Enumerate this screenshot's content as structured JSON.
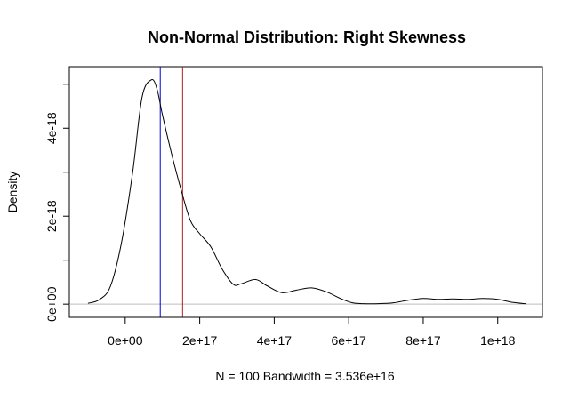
{
  "chart_data": {
    "type": "line",
    "title": "Non-Normal Distribution: Right Skewness",
    "xlabel": "N = 100   Bandwidth = 3.536e+16",
    "ylabel": "Density",
    "xlim": [
      -1.5e+17,
      1.12e+18
    ],
    "ylim": [
      -3e-19,
      5.4e-18
    ],
    "x_ticks": [
      {
        "value": 0,
        "label": "0e+00"
      },
      {
        "value": 2e+17,
        "label": "2e+17"
      },
      {
        "value": 4e+17,
        "label": "4e+17"
      },
      {
        "value": 6e+17,
        "label": "6e+17"
      },
      {
        "value": 8e+17,
        "label": "8e+17"
      },
      {
        "value": 1e+18,
        "label": "1e+18"
      }
    ],
    "y_ticks": [
      {
        "value": 0,
        "label": "0e+00"
      },
      {
        "value": 1e-18,
        "label": ""
      },
      {
        "value": 2e-18,
        "label": "2e-18"
      },
      {
        "value": 3e-18,
        "label": ""
      },
      {
        "value": 4e-18,
        "label": "4e-18"
      },
      {
        "value": 5e-18,
        "label": ""
      }
    ],
    "baseline": {
      "y": 0,
      "color": "#bebebe"
    },
    "vlines": [
      {
        "x": 9.4e+16,
        "color": "#0000cd"
      },
      {
        "x": 1.54e+17,
        "color": "#b22222"
      }
    ],
    "series": [
      {
        "color": "#000000",
        "x": [
          -1e+17,
          -7e+16,
          -4e+16,
          -1e+16,
          2e+16,
          4.5e+16,
          7e+16,
          8.5e+16,
          1e+17,
          1.25e+17,
          1.5e+17,
          1.75e+17,
          2e+17,
          2.3e+17,
          2.6e+17,
          2.9e+17,
          3.1e+17,
          3.5e+17,
          3.8e+17,
          4.2e+17,
          4.6e+17,
          5e+17,
          5.4e+17,
          5.8e+17,
          6.1e+17,
          6.4e+17,
          6.8e+17,
          7.2e+17,
          7.6e+17,
          8e+17,
          8.4e+17,
          8.8e+17,
          9.2e+17,
          9.6e+17,
          1e+18,
          1.04e+18,
          1.075e+18
        ],
        "y": [
          2e-20,
          1e-19,
          4e-19,
          1.4e-18,
          3e-18,
          4.7e-18,
          5.1e-18,
          4.9e-18,
          4.3e-18,
          3.4e-18,
          2.6e-18,
          1.9e-18,
          1.6e-18,
          1.3e-18,
          8e-19,
          4.5e-19,
          4.6e-19,
          5.6e-19,
          4.2e-19,
          2.6e-19,
          3.2e-19,
          3.7e-19,
          2.8e-19,
          1.2e-19,
          3e-20,
          1e-20,
          1e-20,
          3e-20,
          9e-20,
          1.3e-19,
          1.1e-19,
          1.2e-19,
          1.1e-19,
          1.3e-19,
          1.1e-19,
          4e-20,
          1e-20
        ]
      }
    ],
    "grid": false,
    "legend": "none"
  }
}
